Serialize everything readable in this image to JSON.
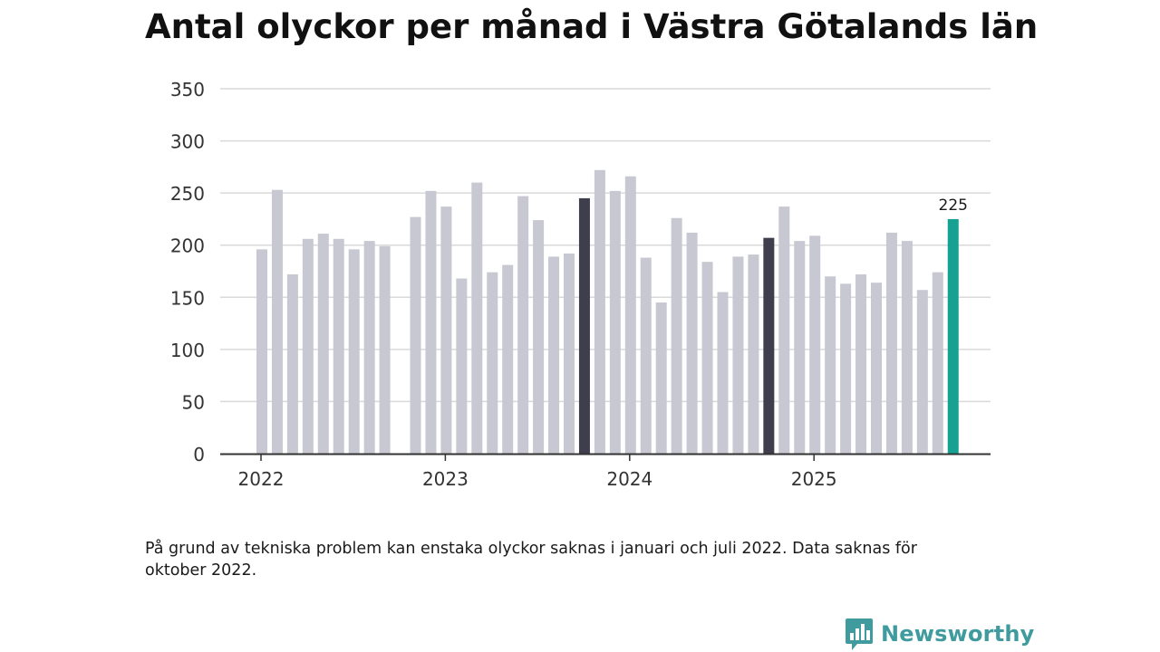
{
  "title": "Antal olyckor per månad i Västra Götalands län",
  "footnote": "På grund av tekniska problem kan enstaka olyckor saknas i januari och juli 2022. Data saknas för oktober 2022.",
  "brand": "Newsworthy",
  "colors": {
    "bar_default": "#c8c8d2",
    "bar_october": "#3f3e4d",
    "bar_latest": "#16a192",
    "grid": "#d9d9d9",
    "axis": "#333333",
    "brand": "#3f9b9e"
  },
  "chart_data": {
    "type": "bar",
    "title": "Antal olyckor per månad i Västra Götalands län",
    "xlabel": "",
    "ylabel": "",
    "ylim": [
      0,
      350
    ],
    "yticks": [
      0,
      50,
      100,
      150,
      200,
      250,
      300,
      350
    ],
    "xticks": [
      {
        "label": "2022",
        "index": 0
      },
      {
        "label": "2023",
        "index": 12
      },
      {
        "label": "2024",
        "index": 24
      },
      {
        "label": "2025",
        "index": 36
      }
    ],
    "grid": true,
    "legend": "none",
    "categories": [
      "2022-01",
      "2022-02",
      "2022-03",
      "2022-04",
      "2022-05",
      "2022-06",
      "2022-07",
      "2022-08",
      "2022-09",
      "2022-10",
      "2022-11",
      "2022-12",
      "2023-01",
      "2023-02",
      "2023-03",
      "2023-04",
      "2023-05",
      "2023-06",
      "2023-07",
      "2023-08",
      "2023-09",
      "2023-10",
      "2023-11",
      "2023-12",
      "2024-01",
      "2024-02",
      "2024-03",
      "2024-04",
      "2024-05",
      "2024-06",
      "2024-07",
      "2024-08",
      "2024-09",
      "2024-10",
      "2024-11",
      "2024-12",
      "2025-01",
      "2025-02",
      "2025-03",
      "2025-04",
      "2025-05",
      "2025-06",
      "2025-07",
      "2025-08",
      "2025-09",
      "2025-10"
    ],
    "values": [
      196,
      253,
      172,
      206,
      211,
      206,
      196,
      204,
      199,
      null,
      227,
      252,
      237,
      168,
      260,
      174,
      181,
      247,
      224,
      189,
      192,
      245,
      272,
      252,
      266,
      188,
      145,
      226,
      212,
      184,
      155,
      189,
      191,
      207,
      237,
      204,
      209,
      170,
      163,
      172,
      164,
      212,
      204,
      157,
      174,
      225
    ],
    "highlight": {
      "october": [
        21,
        33
      ],
      "latest": 45
    },
    "annotations": [
      {
        "index": 45,
        "text": "225"
      }
    ]
  }
}
